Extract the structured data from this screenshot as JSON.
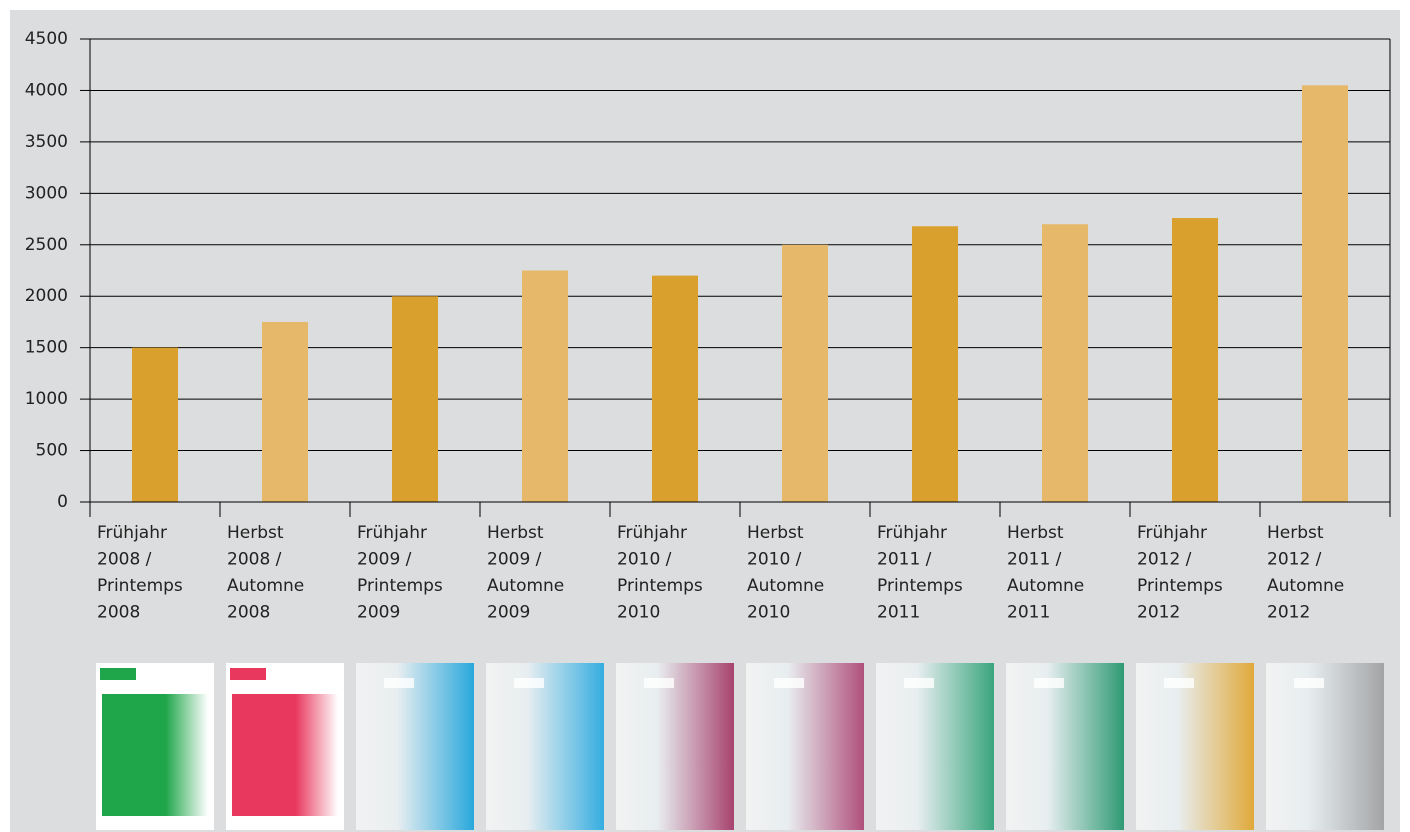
{
  "chart_data": {
    "type": "bar",
    "categories": [
      [
        "Frühjahr",
        "2008 /",
        "Printemps",
        "2008"
      ],
      [
        "Herbst",
        "2008 /",
        "Automne",
        "2008"
      ],
      [
        "Frühjahr",
        "2009 /",
        "Printemps",
        "2009"
      ],
      [
        "Herbst",
        "2009 /",
        "Automne",
        "2009"
      ],
      [
        "Frühjahr",
        "2010 /",
        "Printemps",
        "2010"
      ],
      [
        "Herbst",
        "2010 /",
        "Automne",
        "2010"
      ],
      [
        "Frühjahr",
        "2011 /",
        "Printemps",
        "2011"
      ],
      [
        "Herbst",
        "2011 /",
        "Automne",
        "2011"
      ],
      [
        "Frühjahr",
        "2012 /",
        "Printemps",
        "2012"
      ],
      [
        "Herbst",
        "2012 /",
        "Automne",
        "2012"
      ]
    ],
    "values": [
      1500,
      1750,
      2000,
      2250,
      2200,
      2500,
      2680,
      2700,
      2760,
      4050
    ],
    "colors": [
      "#d9a02e",
      "#e6b96a",
      "#d9a02e",
      "#e6b96a",
      "#d9a02e",
      "#e6b96a",
      "#d9a02e",
      "#e6b96a",
      "#d9a02e",
      "#e6b96a"
    ],
    "ylim": [
      0,
      4500
    ],
    "yticks": [
      0,
      500,
      1000,
      1500,
      2000,
      2500,
      3000,
      3500,
      4000,
      4500
    ],
    "grid": true
  }
}
